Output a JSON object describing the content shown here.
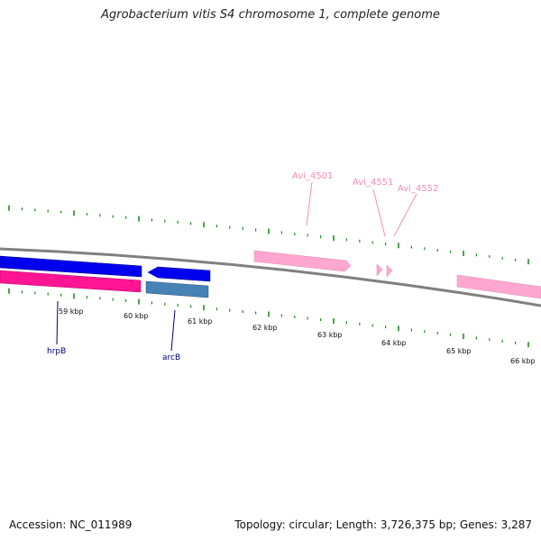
{
  "title": "Agrobacterium vitis S4 chromosome 1, complete genome",
  "footer": {
    "accession": "Accession: NC_011989",
    "stats": "Topology: circular; Length: 3,726,375 bp; Genes: 3,287"
  },
  "colors": {
    "tick": "#228b22",
    "backbone": "#808080",
    "gene_blue": "#0000ee",
    "gene_magenta": "#ff1493",
    "gene_steel": "#4682b4",
    "gene_pink": "#ffa6d1",
    "label_blue": "#00007a",
    "label_pink": "#f28cbc"
  },
  "scale_labels": [
    "59 kbp",
    "60 kbp",
    "61 kbp",
    "62 kbp",
    "63 kbp",
    "64 kbp",
    "65 kbp",
    "66 kbp"
  ],
  "gene_labels": {
    "hrpB": "hrpB",
    "arcB": "arcB",
    "avi4501": "Avi_4501",
    "avi4551": "Avi_4551",
    "avi4552": "Avi_4552"
  }
}
